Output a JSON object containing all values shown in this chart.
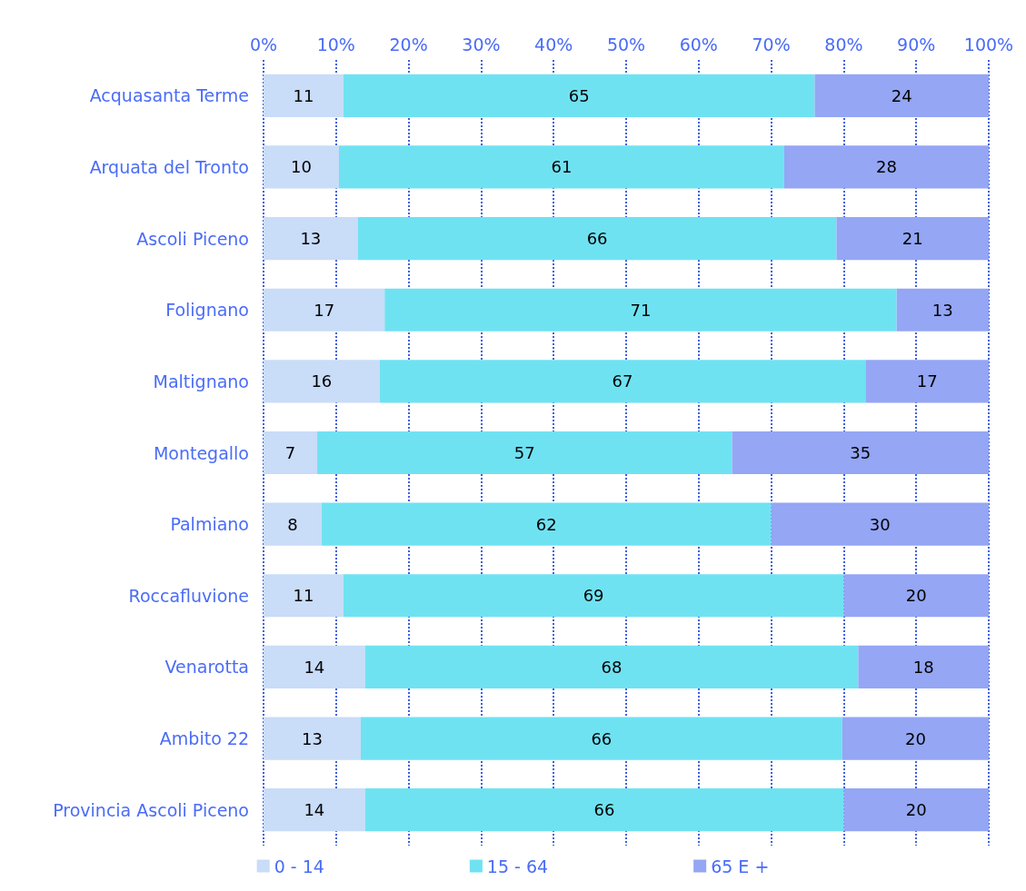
{
  "chart_data": {
    "type": "bar",
    "orientation": "horizontal",
    "stacked": true,
    "grid": "x",
    "legend": "bottom",
    "categories": [
      "Acquasanta Terme",
      "Arquata del Tronto",
      "Ascoli Piceno",
      "Folignano",
      "Maltignano",
      "Montegallo",
      "Palmiano",
      "Roccafluvione",
      "Venarotta",
      "Ambito 22",
      "Provincia Ascoli Piceno"
    ],
    "xlim": [
      0,
      100
    ],
    "xticks": [
      {
        "value": 0,
        "label": "0%"
      },
      {
        "value": 10,
        "label": "10%"
      },
      {
        "value": 20,
        "label": "20%"
      },
      {
        "value": 30,
        "label": "30%"
      },
      {
        "value": 40,
        "label": "40%"
      },
      {
        "value": 50,
        "label": "50%"
      },
      {
        "value": 60,
        "label": "60%"
      },
      {
        "value": 70,
        "label": "70%"
      },
      {
        "value": 80,
        "label": "80%"
      },
      {
        "value": 90,
        "label": "90%"
      },
      {
        "value": 100,
        "label": "100%"
      }
    ],
    "series": [
      {
        "name": "0 - 14",
        "color": "#c9dcf8",
        "values": [
          11,
          10.4,
          13,
          16.7,
          16,
          7.4,
          8,
          11,
          14,
          13.4,
          14
        ],
        "value_labels": [
          "11",
          "10",
          "13",
          "17",
          "16",
          "7",
          "8",
          "11",
          "14",
          "13",
          "14"
        ]
      },
      {
        "name": "15 - 64",
        "color": "#6fe2f2",
        "values": [
          65,
          61.4,
          66,
          70.6,
          67,
          57.2,
          62,
          69,
          68,
          66.4,
          66
        ],
        "value_labels": [
          "65",
          "61",
          "66",
          "71",
          "67",
          "57",
          "62",
          "69",
          "68",
          "66",
          "66"
        ]
      },
      {
        "name": "65 E +",
        "color": "#94a6f4",
        "values": [
          24,
          28.2,
          21,
          12.7,
          17,
          35.4,
          30,
          20,
          18,
          20.2,
          20
        ],
        "value_labels": [
          "24",
          "28",
          "21",
          "13",
          "17",
          "35",
          "30",
          "20",
          "18",
          "20",
          "20"
        ]
      }
    ]
  }
}
